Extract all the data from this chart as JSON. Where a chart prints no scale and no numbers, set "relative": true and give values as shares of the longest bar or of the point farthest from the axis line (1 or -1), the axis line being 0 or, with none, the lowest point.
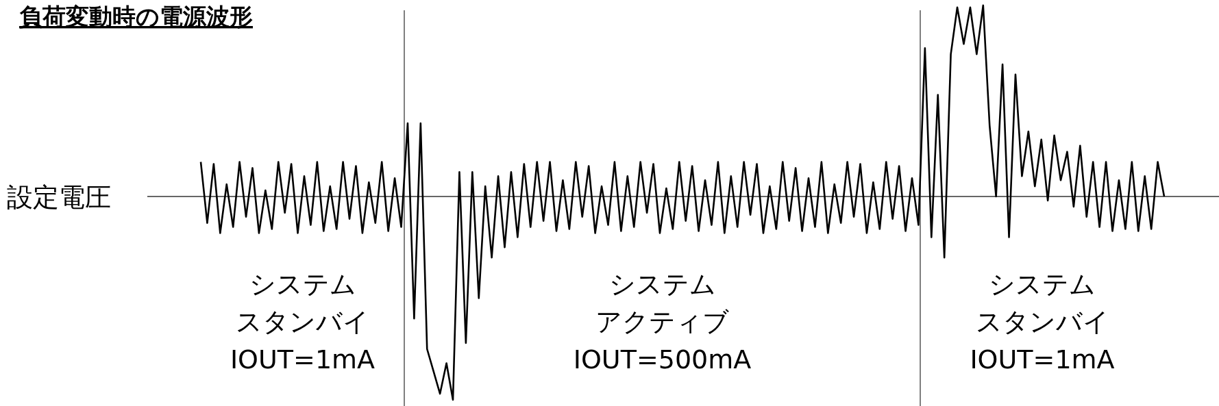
{
  "chart_data": {
    "type": "line",
    "title": "負荷変動時の電源波形",
    "relative": true,
    "tick_labels": false,
    "marker": "none",
    "line_style": "solid",
    "categories": [
      null,
      null,
      null,
      null,
      null,
      null,
      null,
      null,
      null,
      null,
      null,
      null,
      null,
      null,
      null,
      null,
      null,
      null,
      null,
      null,
      null,
      null,
      null,
      null,
      null,
      null,
      null,
      null,
      null,
      null,
      null,
      null,
      null,
      null,
      null,
      null,
      null,
      null,
      null,
      null,
      null,
      null,
      null,
      null,
      null,
      null,
      null,
      null,
      null,
      null,
      null,
      null,
      null,
      null,
      null,
      null,
      null,
      null,
      null,
      null,
      null,
      null,
      null,
      null,
      null,
      null,
      null,
      null,
      null,
      null,
      null,
      null,
      null,
      null,
      null,
      null,
      null,
      null,
      null,
      null,
      null,
      null,
      null,
      null,
      null,
      null,
      null,
      null,
      null,
      null,
      null,
      null,
      null,
      null,
      null,
      null,
      null,
      null,
      null,
      null,
      null,
      null,
      null,
      null,
      null,
      null,
      null,
      null,
      null,
      null,
      null,
      null,
      null,
      null,
      null,
      null,
      null,
      null,
      null,
      null,
      null,
      null,
      null,
      null,
      null,
      null,
      null,
      null,
      null,
      null,
      null,
      null,
      null,
      null,
      null,
      null,
      null,
      null,
      null,
      null,
      null,
      null,
      null,
      null,
      null,
      null,
      null,
      null,
      null,
      null
    ],
    "series": [
      {
        "color": "#000000",
        "values": [
          0.17,
          -0.13,
          0.16,
          -0.18,
          0.06,
          -0.15,
          0.17,
          -0.1,
          0.14,
          -0.18,
          0.03,
          -0.16,
          0.17,
          -0.08,
          0.16,
          -0.18,
          0.1,
          -0.14,
          0.17,
          -0.17,
          0.05,
          -0.16,
          0.17,
          -0.11,
          0.15,
          -0.18,
          0.07,
          -0.13,
          0.17,
          -0.17,
          0.09,
          -0.15,
          0.36,
          -0.6,
          0.36,
          -0.75,
          -0.86,
          -0.97,
          -0.82,
          -1,
          0.12,
          -0.72,
          0.12,
          -0.5,
          0.05,
          -0.3,
          0.1,
          -0.25,
          0.12,
          -0.2,
          0.16,
          -0.15,
          0.17,
          -0.12,
          0.17,
          -0.17,
          0.08,
          -0.16,
          0.17,
          -0.1,
          0.15,
          -0.18,
          0.05,
          -0.14,
          0.17,
          -0.17,
          0.1,
          -0.15,
          0.17,
          -0.08,
          0.16,
          -0.18,
          0.04,
          -0.16,
          0.17,
          -0.12,
          0.15,
          -0.17,
          0.08,
          -0.14,
          0.17,
          -0.18,
          0.1,
          -0.15,
          0.17,
          -0.09,
          0.16,
          -0.18,
          0.05,
          -0.16,
          0.17,
          -0.12,
          0.14,
          -0.17,
          0.09,
          -0.15,
          0.17,
          -0.18,
          0.06,
          -0.13,
          0.17,
          -0.1,
          0.16,
          -0.18,
          0.07,
          -0.16,
          0.17,
          -0.11,
          0.15,
          -0.17,
          0.09,
          -0.14,
          0.73,
          -0.2,
          0.5,
          -0.3,
          0.7,
          0.93,
          0.75,
          0.93,
          0.7,
          0.94,
          0.35,
          0.0,
          0.65,
          -0.2,
          0.6,
          0.1,
          0.32,
          0.05,
          0.28,
          -0.02,
          0.3,
          0.08,
          0.22,
          -0.05,
          0.25,
          -0.1,
          0.17,
          -0.15,
          0.17,
          -0.17,
          0.08,
          -0.16,
          0.17,
          -0.17,
          0.1,
          -0.16,
          0.17,
          0.0
        ]
      }
    ],
    "ref_lines": [
      {
        "axis": "y",
        "value": 0,
        "label": "設定電圧",
        "color": "#333333"
      }
    ],
    "annotations": [
      "システム",
      "スタンバイ",
      "IOUT=1mA",
      "システム",
      "アクティブ",
      "IOUT=500mA",
      "システム",
      "スタンバイ",
      "IOUT=1mA"
    ]
  }
}
